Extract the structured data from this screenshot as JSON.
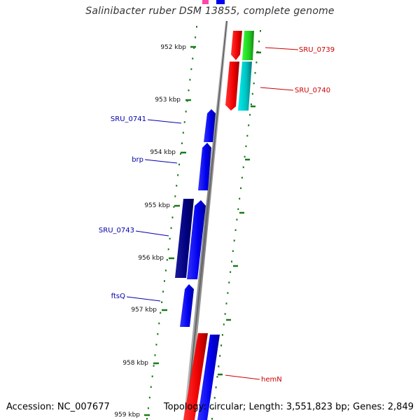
{
  "title": "Salinibacter ruber DSM 13855, complete genome",
  "footer": {
    "accession": "Accession: NC_007677",
    "summary": "Topology: circular; Length: 3,551,823 bp; Genes: 2,849"
  },
  "colors": {
    "reverse_strand_label": "#0000aa",
    "forward_strand_label": "#cc0000",
    "tick": "#1a7a1a",
    "backbone": "#8a8a8a"
  },
  "ticks": [
    "952 kbp",
    "953 kbp",
    "954 kbp",
    "955 kbp",
    "956 kbp",
    "957 kbp",
    "958 kbp",
    "959 kbp"
  ],
  "genes_left": [
    {
      "label": "SRU_0741"
    },
    {
      "label": "brp"
    },
    {
      "label": "SRU_0743"
    },
    {
      "label": "ftsQ"
    }
  ],
  "genes_right": [
    {
      "label": "SRU_0739"
    },
    {
      "label": "SRU_0740"
    },
    {
      "label": "hemN"
    }
  ]
}
